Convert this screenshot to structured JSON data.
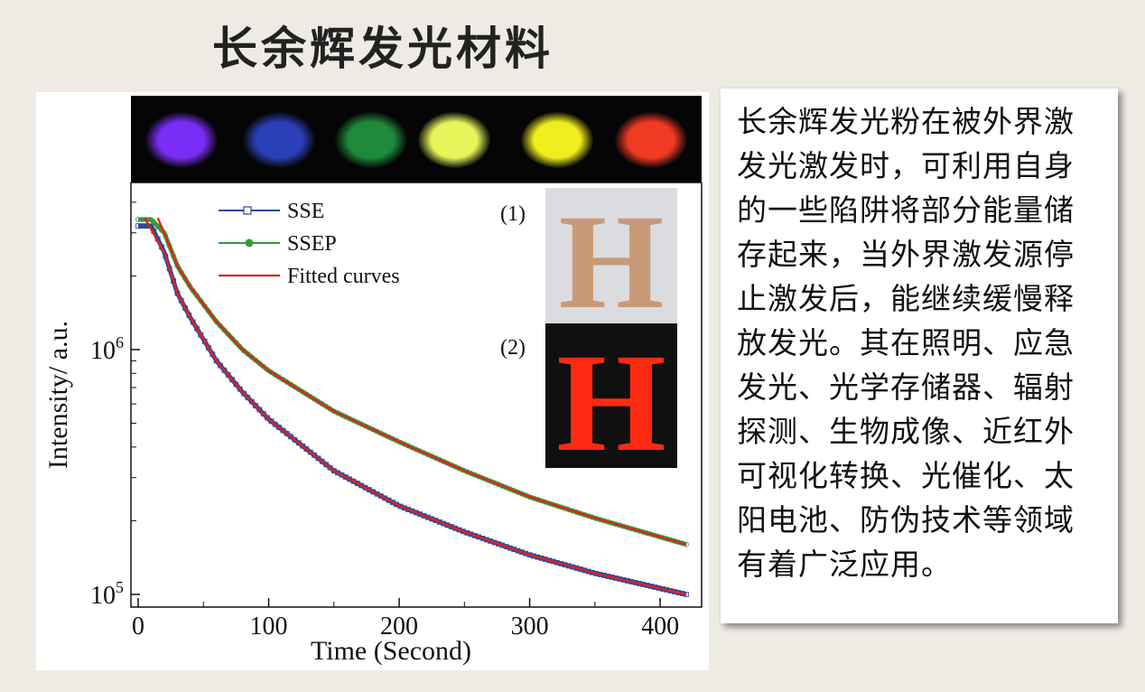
{
  "page": {
    "title": "长余辉发光材料",
    "body_text": "长余辉发光粉在被外界激发光激发时，可利用自身的一些陷阱将部分能量储存起来，当外界激发源停止激发后，能继续缓慢释放发光。其在照明、应急发光、光学存储器、辐射探测、生物成像、近红外可视化转换、光催化、太阳电池、防伪技术等领域有着广泛应用。"
  },
  "photos": {
    "label_1": "(1)",
    "label_2": "(2)",
    "letter": "H",
    "powder_colors": [
      "#7a2df5",
      "#2b40b8",
      "#1f8a3a",
      "#e6f55a",
      "#f2ee1e",
      "#f03a22"
    ]
  },
  "chart_data": {
    "type": "line",
    "xlabel": "Time (Second)",
    "ylabel": "Intensity/ a.u.",
    "xlim": [
      0,
      420
    ],
    "ylim": [
      95000,
      4500000
    ],
    "yscale": "log",
    "xticks": [
      0,
      100,
      200,
      300,
      400
    ],
    "xtick_labels": [
      "0",
      "100",
      "200",
      "300",
      "400"
    ],
    "yticks": [
      100000,
      1000000
    ],
    "ytick_labels": [
      {
        "base": "10",
        "exp": "5"
      },
      {
        "base": "10",
        "exp": "6"
      }
    ],
    "legend_position": "top-left",
    "series": [
      {
        "name": "SSE",
        "color": "#2a4a9a",
        "marker": "square",
        "x": [
          0,
          10,
          20,
          30,
          40,
          60,
          80,
          100,
          150,
          200,
          250,
          300,
          350,
          420
        ],
        "y": [
          3200000,
          3200000,
          2500000,
          1700000,
          1350000,
          900000,
          670000,
          520000,
          320000,
          230000,
          180000,
          145000,
          122000,
          100000
        ]
      },
      {
        "name": "SSEP",
        "color": "#3a9a3a",
        "marker": "circle",
        "x": [
          0,
          10,
          20,
          30,
          40,
          60,
          80,
          100,
          150,
          200,
          250,
          300,
          350,
          420
        ],
        "y": [
          3400000,
          3400000,
          3000000,
          2200000,
          1800000,
          1300000,
          1000000,
          820000,
          560000,
          420000,
          320000,
          250000,
          205000,
          160000
        ]
      },
      {
        "name": "Fitted curves",
        "color": "#e0221c",
        "marker": "none",
        "x": [
          5,
          20,
          30,
          40,
          60,
          80,
          100,
          150,
          200,
          250,
          300,
          350,
          420
        ],
        "y": [
          3450000,
          2500000,
          1700000,
          1350000,
          900000,
          670000,
          520000,
          320000,
          230000,
          180000,
          145000,
          122000,
          100000
        ]
      },
      {
        "name": "",
        "color": "#e0221c",
        "marker": "none",
        "x": [
          15,
          20,
          30,
          40,
          60,
          80,
          100,
          150,
          200,
          250,
          300,
          350,
          420
        ],
        "y": [
          3450000,
          3000000,
          2200000,
          1800000,
          1300000,
          1000000,
          820000,
          560000,
          420000,
          320000,
          250000,
          205000,
          160000
        ]
      }
    ]
  }
}
